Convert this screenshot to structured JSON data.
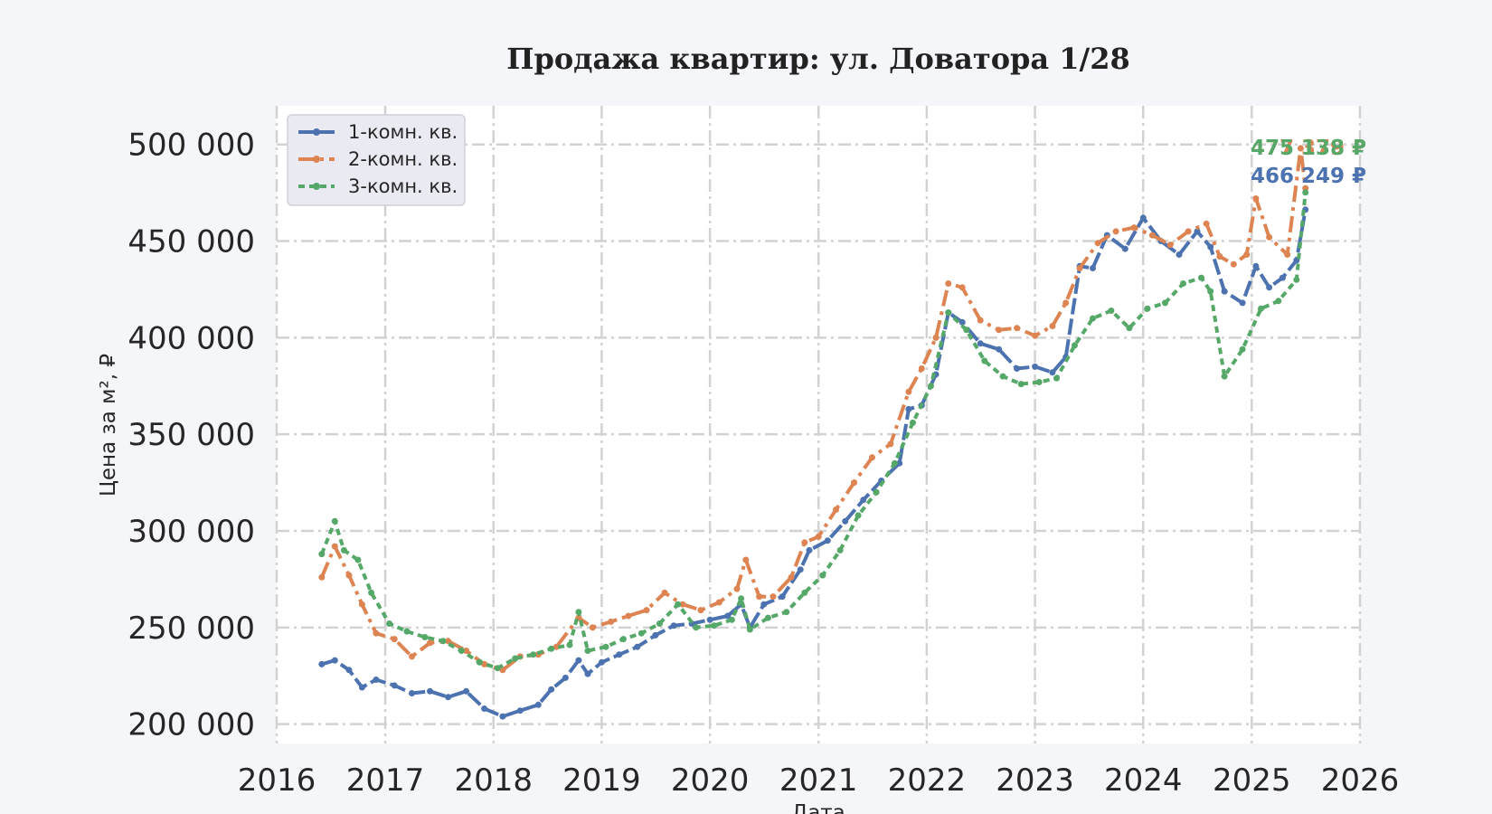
{
  "chart_data": {
    "type": "line",
    "title": "Продажа квартир: ул. Доватора 1/28",
    "xlabel": "Дата",
    "ylabel": "Цена за м², ₽",
    "xlim": [
      "2016-01-01",
      "2026-01-01"
    ],
    "ylim": [
      190000,
      520000
    ],
    "x_ticks": [
      "2016",
      "2017",
      "2018",
      "2019",
      "2020",
      "2021",
      "2022",
      "2023",
      "2024",
      "2025",
      "2026"
    ],
    "y_ticks": [
      200000,
      250000,
      300000,
      350000,
      400000,
      450000,
      500000
    ],
    "y_tick_labels": [
      "200 000",
      "250 000",
      "300 000",
      "350 000",
      "400 000",
      "450 000",
      "500 000"
    ],
    "grid": true,
    "legend_position": "top-left",
    "series": [
      {
        "name": "1-комн. кв.",
        "color": "#4c72b0",
        "points": [
          [
            "2016-06-01",
            231000
          ],
          [
            "2016-07-15",
            233000
          ],
          [
            "2016-09-01",
            228000
          ],
          [
            "2016-10-15",
            219000
          ],
          [
            "2016-12-01",
            223000
          ],
          [
            "2017-02-01",
            220000
          ],
          [
            "2017-04-01",
            216000
          ],
          [
            "2017-06-01",
            217000
          ],
          [
            "2017-08-01",
            214000
          ],
          [
            "2017-10-01",
            217000
          ],
          [
            "2017-12-01",
            208000
          ],
          [
            "2018-02-01",
            204000
          ],
          [
            "2018-04-01",
            207000
          ],
          [
            "2018-06-01",
            210000
          ],
          [
            "2018-07-15",
            218000
          ],
          [
            "2018-09-01",
            224000
          ],
          [
            "2018-10-15",
            233000
          ],
          [
            "2018-11-15",
            226000
          ],
          [
            "2019-01-01",
            232000
          ],
          [
            "2019-03-01",
            236000
          ],
          [
            "2019-05-01",
            240000
          ],
          [
            "2019-07-01",
            246000
          ],
          [
            "2019-09-01",
            251000
          ],
          [
            "2019-11-01",
            252000
          ],
          [
            "2020-01-01",
            254000
          ],
          [
            "2020-03-01",
            256000
          ],
          [
            "2020-04-15",
            262000
          ],
          [
            "2020-05-15",
            250000
          ],
          [
            "2020-07-01",
            262000
          ],
          [
            "2020-09-01",
            266000
          ],
          [
            "2020-11-01",
            280000
          ],
          [
            "2020-12-01",
            290000
          ],
          [
            "2021-02-01",
            295000
          ],
          [
            "2021-04-01",
            305000
          ],
          [
            "2021-06-01",
            316000
          ],
          [
            "2021-08-01",
            326000
          ],
          [
            "2021-10-01",
            335000
          ],
          [
            "2021-11-01",
            363000
          ],
          [
            "2021-12-15",
            365000
          ],
          [
            "2022-02-01",
            381000
          ],
          [
            "2022-03-15",
            413000
          ],
          [
            "2022-05-01",
            408000
          ],
          [
            "2022-07-01",
            397000
          ],
          [
            "2022-09-01",
            394000
          ],
          [
            "2022-11-01",
            384000
          ],
          [
            "2023-01-01",
            385000
          ],
          [
            "2023-03-01",
            382000
          ],
          [
            "2023-04-15",
            390000
          ],
          [
            "2023-06-01",
            437000
          ],
          [
            "2023-07-15",
            436000
          ],
          [
            "2023-09-01",
            453000
          ],
          [
            "2023-11-01",
            446000
          ],
          [
            "2024-01-01",
            462000
          ],
          [
            "2024-03-01",
            450000
          ],
          [
            "2024-05-01",
            443000
          ],
          [
            "2024-07-01",
            455000
          ],
          [
            "2024-08-15",
            447000
          ],
          [
            "2024-10-01",
            424000
          ],
          [
            "2024-12-01",
            418000
          ],
          [
            "2025-01-15",
            437000
          ],
          [
            "2025-03-01",
            426000
          ],
          [
            "2025-04-15",
            431000
          ],
          [
            "2025-06-01",
            440000
          ],
          [
            "2025-07-01",
            466249
          ]
        ]
      },
      {
        "name": "2-комн. кв.",
        "color": "#dd8452",
        "points": [
          [
            "2016-06-01",
            276000
          ],
          [
            "2016-07-15",
            292000
          ],
          [
            "2016-09-01",
            277000
          ],
          [
            "2016-10-15",
            262000
          ],
          [
            "2016-12-01",
            247000
          ],
          [
            "2017-02-01",
            244000
          ],
          [
            "2017-04-01",
            235000
          ],
          [
            "2017-06-01",
            242000
          ],
          [
            "2017-08-01",
            243000
          ],
          [
            "2017-10-01",
            238000
          ],
          [
            "2017-12-01",
            231000
          ],
          [
            "2018-02-01",
            228000
          ],
          [
            "2018-04-01",
            235000
          ],
          [
            "2018-06-01",
            236000
          ],
          [
            "2018-08-01",
            240000
          ],
          [
            "2018-10-15",
            255000
          ],
          [
            "2018-12-01",
            250000
          ],
          [
            "2019-02-01",
            253000
          ],
          [
            "2019-04-01",
            256000
          ],
          [
            "2019-06-01",
            259000
          ],
          [
            "2019-08-01",
            268000
          ],
          [
            "2019-10-01",
            262000
          ],
          [
            "2019-12-01",
            259000
          ],
          [
            "2020-02-01",
            263000
          ],
          [
            "2020-04-01",
            270000
          ],
          [
            "2020-05-01",
            285000
          ],
          [
            "2020-06-15",
            266000
          ],
          [
            "2020-08-01",
            266000
          ],
          [
            "2020-10-01",
            276000
          ],
          [
            "2020-11-15",
            294000
          ],
          [
            "2021-01-01",
            297000
          ],
          [
            "2021-03-01",
            311000
          ],
          [
            "2021-05-01",
            325000
          ],
          [
            "2021-07-01",
            338000
          ],
          [
            "2021-09-01",
            345000
          ],
          [
            "2021-11-01",
            372000
          ],
          [
            "2021-12-15",
            384000
          ],
          [
            "2022-02-01",
            400000
          ],
          [
            "2022-03-15",
            428000
          ],
          [
            "2022-05-01",
            426000
          ],
          [
            "2022-07-01",
            409000
          ],
          [
            "2022-09-01",
            404000
          ],
          [
            "2022-11-01",
            405000
          ],
          [
            "2023-01-01",
            401000
          ],
          [
            "2023-03-01",
            406000
          ],
          [
            "2023-04-15",
            418000
          ],
          [
            "2023-06-01",
            436000
          ],
          [
            "2023-08-01",
            449000
          ],
          [
            "2023-10-01",
            455000
          ],
          [
            "2023-12-01",
            457000
          ],
          [
            "2024-02-01",
            453000
          ],
          [
            "2024-04-01",
            448000
          ],
          [
            "2024-06-01",
            455000
          ],
          [
            "2024-08-01",
            459000
          ],
          [
            "2024-09-15",
            442000
          ],
          [
            "2024-11-01",
            438000
          ],
          [
            "2024-12-15",
            443000
          ],
          [
            "2025-01-15",
            472000
          ],
          [
            "2025-03-01",
            452000
          ],
          [
            "2025-05-01",
            443000
          ],
          [
            "2025-06-15",
            498000
          ],
          [
            "2025-07-01",
            477379
          ]
        ]
      },
      {
        "name": "3-комн. кв.",
        "color": "#55a868",
        "points": [
          [
            "2016-06-01",
            288000
          ],
          [
            "2016-07-15",
            305000
          ],
          [
            "2016-08-15",
            290000
          ],
          [
            "2016-10-01",
            285000
          ],
          [
            "2016-11-15",
            268000
          ],
          [
            "2017-01-15",
            252000
          ],
          [
            "2017-03-15",
            248000
          ],
          [
            "2017-05-15",
            245000
          ],
          [
            "2017-07-15",
            243000
          ],
          [
            "2017-09-15",
            238000
          ],
          [
            "2017-11-15",
            232000
          ],
          [
            "2018-01-15",
            229000
          ],
          [
            "2018-03-15",
            234000
          ],
          [
            "2018-05-15",
            236000
          ],
          [
            "2018-07-15",
            239000
          ],
          [
            "2018-09-15",
            241000
          ],
          [
            "2018-10-15",
            258000
          ],
          [
            "2018-11-15",
            238000
          ],
          [
            "2019-01-15",
            240000
          ],
          [
            "2019-03-15",
            244000
          ],
          [
            "2019-05-15",
            247000
          ],
          [
            "2019-07-15",
            252000
          ],
          [
            "2019-09-15",
            262000
          ],
          [
            "2019-11-15",
            250000
          ],
          [
            "2020-01-15",
            251000
          ],
          [
            "2020-03-15",
            254000
          ],
          [
            "2020-04-15",
            265000
          ],
          [
            "2020-05-15",
            249000
          ],
          [
            "2020-07-15",
            255000
          ],
          [
            "2020-09-15",
            258000
          ],
          [
            "2020-11-15",
            268000
          ],
          [
            "2021-01-15",
            277000
          ],
          [
            "2021-03-15",
            290000
          ],
          [
            "2021-05-15",
            308000
          ],
          [
            "2021-07-15",
            320000
          ],
          [
            "2021-09-15",
            335000
          ],
          [
            "2021-11-15",
            356000
          ],
          [
            "2022-01-15",
            375000
          ],
          [
            "2022-03-15",
            413000
          ],
          [
            "2022-05-15",
            404000
          ],
          [
            "2022-07-15",
            388000
          ],
          [
            "2022-09-15",
            380000
          ],
          [
            "2022-11-15",
            376000
          ],
          [
            "2023-01-15",
            377000
          ],
          [
            "2023-03-15",
            379000
          ],
          [
            "2023-05-15",
            396000
          ],
          [
            "2023-07-15",
            410000
          ],
          [
            "2023-09-15",
            414000
          ],
          [
            "2023-11-15",
            405000
          ],
          [
            "2024-01-15",
            415000
          ],
          [
            "2024-03-15",
            418000
          ],
          [
            "2024-05-15",
            428000
          ],
          [
            "2024-07-15",
            431000
          ],
          [
            "2024-08-15",
            424000
          ],
          [
            "2024-10-01",
            380000
          ],
          [
            "2024-12-01",
            394000
          ],
          [
            "2025-02-01",
            415000
          ],
          [
            "2025-04-01",
            419000
          ],
          [
            "2025-06-01",
            430000
          ],
          [
            "2025-07-01",
            475138
          ]
        ]
      }
    ],
    "end_labels": [
      {
        "series": "2-комн. кв.",
        "text": "477 379 ₽"
      },
      {
        "series": "3-комн. кв.",
        "text": "475 138 ₽"
      },
      {
        "series": "1-комн. кв.",
        "text": "466 249 ₽"
      }
    ]
  }
}
